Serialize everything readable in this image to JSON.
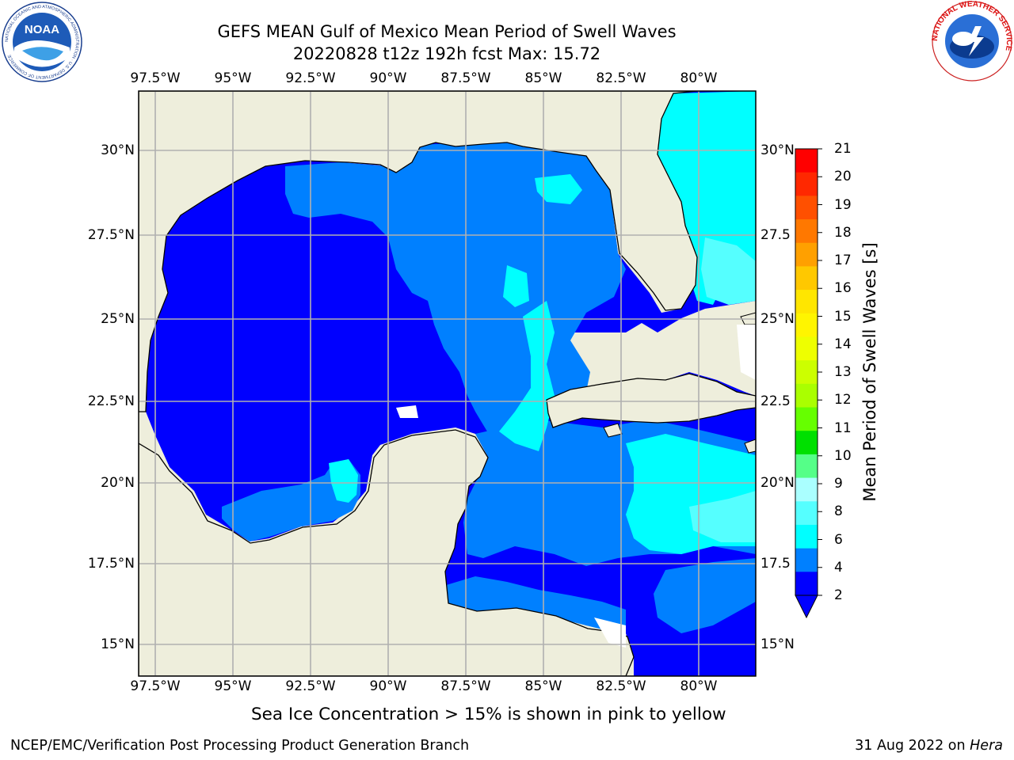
{
  "header": {
    "title_line1": "GEFS MEAN Gulf of Mexico Mean Period of Swell Waves",
    "title_line2": "20220828 t12z 192h fcst   Max: 15.72"
  },
  "logos": {
    "left_name": "NOAA",
    "left_ring_text": "NATIONAL OCEANIC AND ATMOSPHERIC ADMINISTRATION · U.S. DEPARTMENT OF COMMERCE",
    "right_ring_text": "NATIONAL WEATHER SERVICE"
  },
  "map": {
    "lon_labels": [
      "97.5°W",
      "95°W",
      "92.5°W",
      "90°W",
      "87.5°W",
      "85°W",
      "82.5°W",
      "80°W"
    ],
    "lat_labels_left": [
      "30°N",
      "27.5°N",
      "25°N",
      "22.5°N",
      "20°N",
      "17.5°N",
      "15°N"
    ],
    "lat_labels_right": [
      "30°N",
      "27.5",
      "25°N",
      "22.5",
      "20°N",
      "17.5",
      "15°N"
    ],
    "colors": {
      "land": "#eeeedc",
      "grid": "#b0b0b0",
      "coast": "#000000"
    }
  },
  "colorbar": {
    "label": "Mean Period of Swell Waves [s]",
    "ticks": [
      "21",
      "20",
      "19",
      "18",
      "17",
      "16",
      "15",
      "14",
      "13",
      "12",
      "11",
      "10",
      "9",
      "8",
      "6",
      "4",
      "2"
    ],
    "colors": [
      "#ff0000",
      "#ff2800",
      "#ff5000",
      "#ff7800",
      "#ffa000",
      "#ffc800",
      "#ffe600",
      "#fff500",
      "#eeff00",
      "#ccff00",
      "#aaff00",
      "#66ff00",
      "#00e000",
      "#55ff88",
      "#aaffff",
      "#55ffff",
      "#00ffff",
      "#0080ff",
      "#0000ff"
    ]
  },
  "footer": {
    "note": "Sea Ice Concentration > 15% is shown in pink to yellow",
    "left": "NCEP/EMC/Verification Post Processing Product Generation Branch",
    "right_prefix": "31 Aug 2022 on ",
    "right_host": "Hera"
  }
}
